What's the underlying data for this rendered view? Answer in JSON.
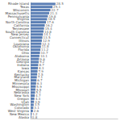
{
  "chart_data": {
    "type": "bar",
    "orientation": "horizontal",
    "categories": [
      "Rhode Island",
      "Texas",
      "Wisconsin",
      "Massachusetts",
      "Pennsylvania",
      "Virginia",
      "North Carolina",
      "California",
      "Tennessee",
      "South Carolina",
      "New Jersey",
      "Connecticut",
      "Illinois",
      "Louisiana",
      "Oklahoma",
      "Florida",
      "Ohio",
      "Alabama",
      "Arizona",
      "Georgia",
      "Indiana",
      "Iowa",
      "Kansas",
      "Kentucky",
      "Maryland",
      "Michigan",
      "Minnesota",
      "Mississippi",
      "Missouri",
      "Nebraska",
      "New York",
      "Oregon",
      "Utah",
      "Washington",
      "Colorado",
      "West Virginia",
      "New Mexico",
      "Alaska"
    ],
    "values": [
      28.5,
      25.1,
      22.7,
      21.3,
      19.8,
      18.9,
      17.6,
      16.2,
      15.4,
      14.8,
      14.1,
      13.5,
      12.9,
      12.3,
      11.8,
      11.2,
      10.7,
      10.1,
      9.6,
      9.2,
      8.7,
      8.3,
      7.9,
      7.5,
      7.1,
      6.7,
      6.3,
      5.9,
      5.5,
      5.1,
      4.7,
      4.3,
      3.9,
      3.5,
      3.1,
      2.6,
      1.2,
      0.8
    ],
    "color": "#5b7fb5",
    "xlim": [
      0,
      100
    ],
    "grid": false,
    "data_labels": true,
    "tick_labels": "y"
  }
}
